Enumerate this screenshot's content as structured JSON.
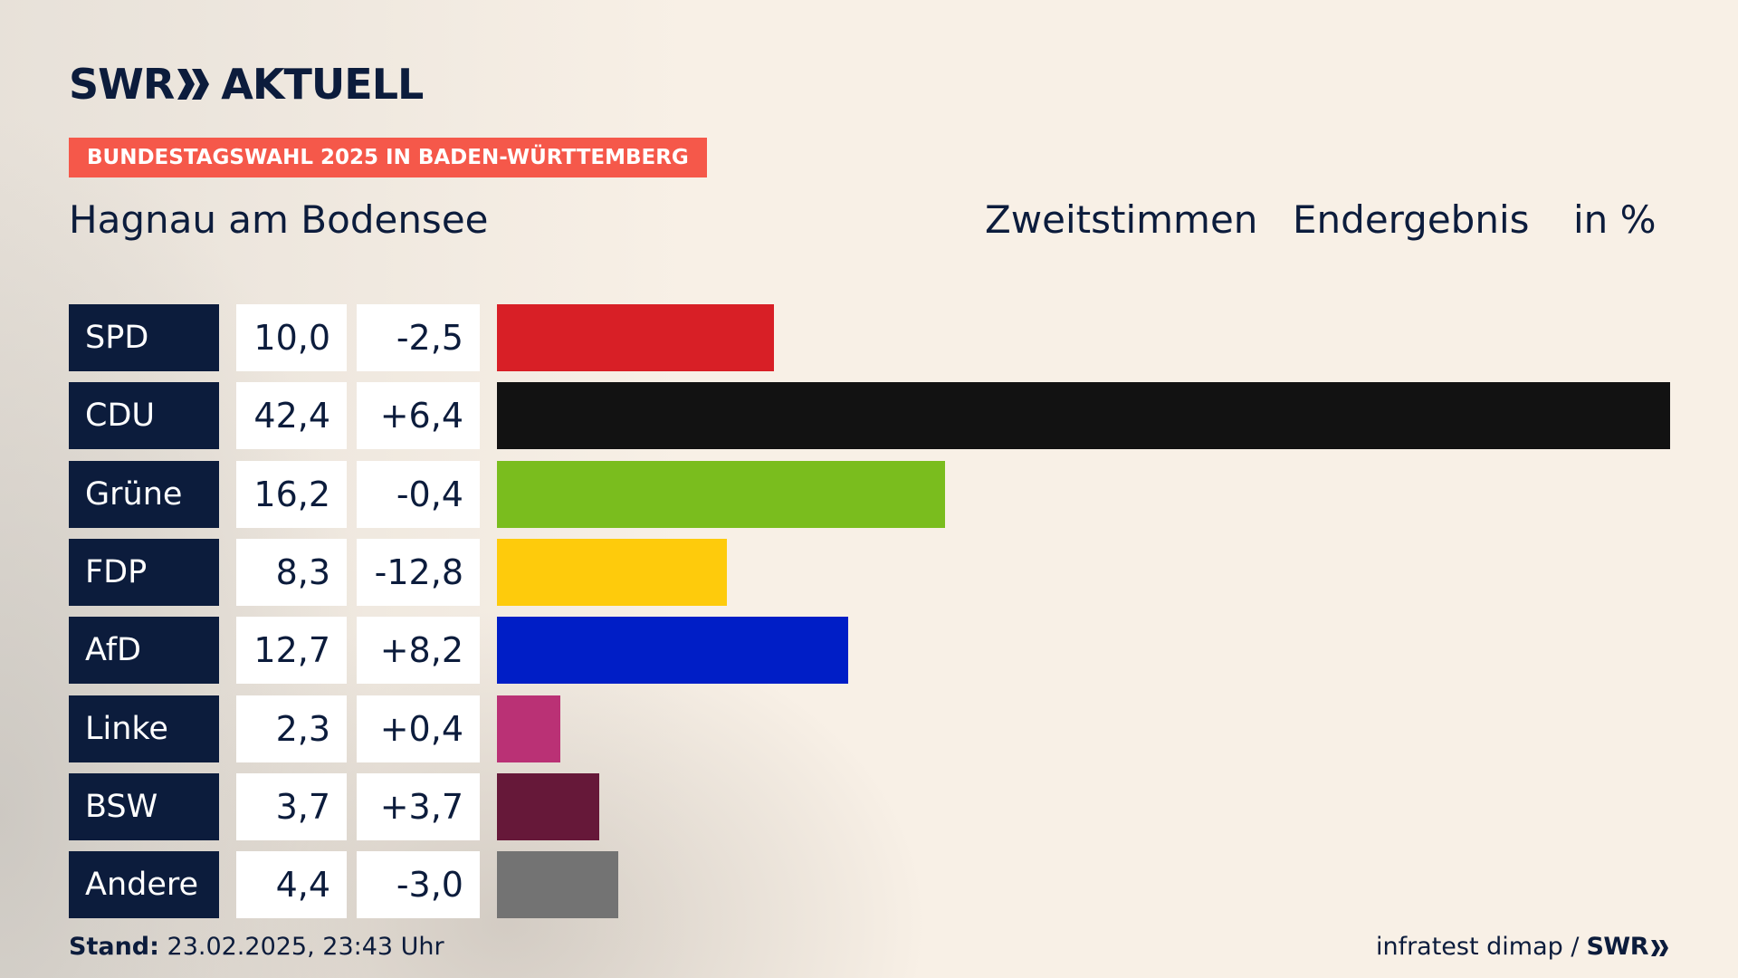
{
  "brand": {
    "logo_left": "SWR",
    "logo_right": "AKTUELL"
  },
  "tag": "BUNDESTAGSWAHL 2025 IN BADEN-WÜRTTEMBERG",
  "location": "Hagnau am Bodensee",
  "header": {
    "vote_type": "Zweitstimmen",
    "status": "Endergebnis",
    "unit": "in %"
  },
  "chart_data": {
    "type": "bar",
    "orientation": "horizontal",
    "categories": [
      "SPD",
      "CDU",
      "Grüne",
      "FDP",
      "AfD",
      "Linke",
      "BSW",
      "Andere"
    ],
    "values": [
      10.0,
      42.4,
      16.2,
      8.3,
      12.7,
      2.3,
      3.7,
      4.4
    ],
    "value_labels": [
      "10,0",
      "42,4",
      "16,2",
      "8,3",
      "12,7",
      "2,3",
      "3,7",
      "4,4"
    ],
    "change": [
      -2.5,
      6.4,
      -0.4,
      -12.8,
      8.2,
      0.4,
      3.7,
      -3.0
    ],
    "change_labels": [
      "-2,5",
      "+6,4",
      "-0,4",
      "-12,8",
      "+8,2",
      "+0,4",
      "+3,7",
      "-3,0"
    ],
    "colors": [
      "#d81f26",
      "#121212",
      "#7abd1e",
      "#fecb0c",
      "#001ec6",
      "#ba3175",
      "#661839",
      "#737373"
    ],
    "xlim": [
      0,
      42.4
    ]
  },
  "footer": {
    "stand_label": "Stand:",
    "stand_value": "23.02.2025, 23:43 Uhr",
    "source": "infratest dimap /",
    "source_logo": "SWR"
  },
  "colors": {
    "navy": "#0c1c3c",
    "accent": "#f5584a",
    "background": "#f8f0e6"
  }
}
